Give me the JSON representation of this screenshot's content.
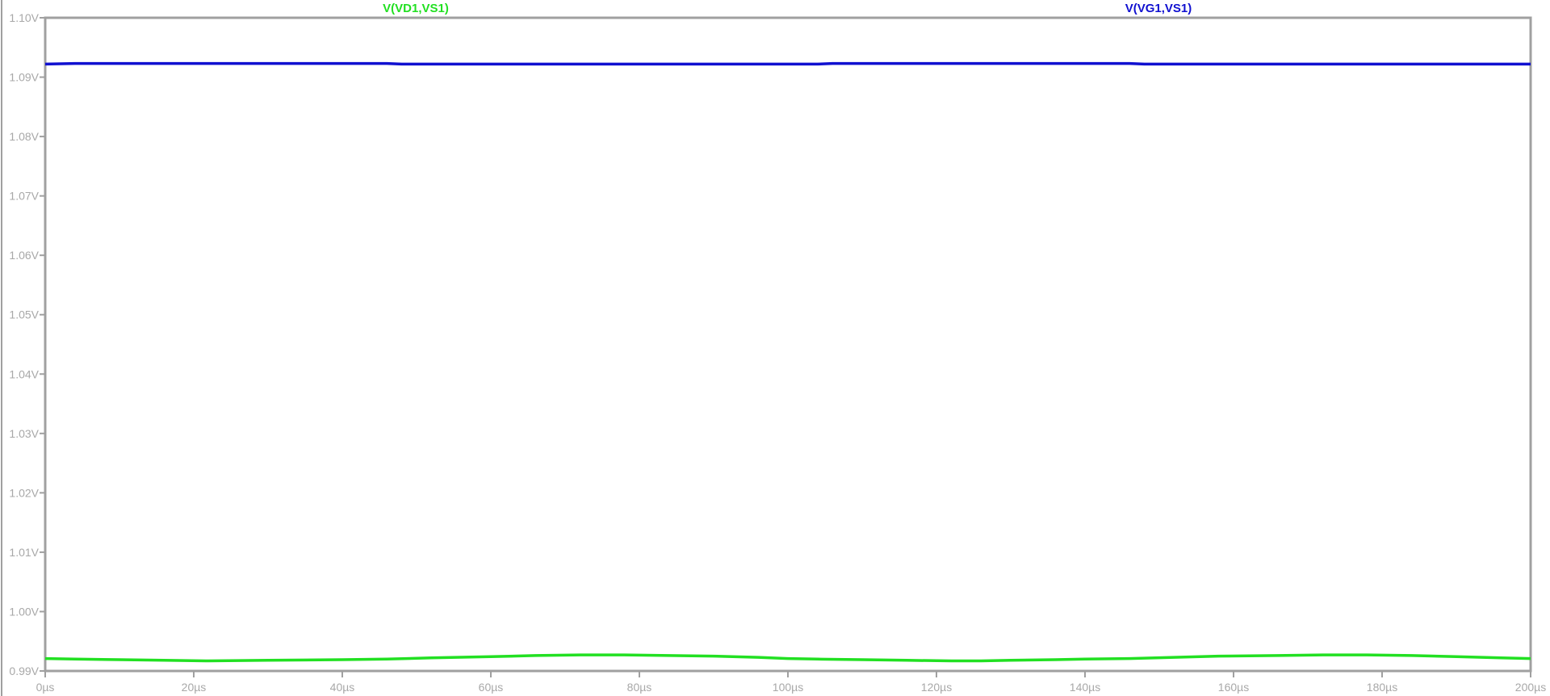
{
  "chart_data": {
    "type": "line",
    "title": "",
    "xlabel": "",
    "ylabel": "",
    "grid": false,
    "legend_placement": "top",
    "xlim": [
      0,
      200
    ],
    "ylim": [
      0.99,
      1.1
    ],
    "x_unit": "µs",
    "xticks": [
      "0µs",
      "20µs",
      "40µs",
      "60µs",
      "80µs",
      "100µs",
      "120µs",
      "140µs",
      "160µs",
      "180µs",
      "200µs"
    ],
    "yticks": [
      "0.99V",
      "1.00V",
      "1.01V",
      "1.02V",
      "1.03V",
      "1.04V",
      "1.05V",
      "1.06V",
      "1.07V",
      "1.08V",
      "1.09V",
      "1.10V"
    ],
    "series": [
      {
        "name": "V(VD1,VS1)",
        "color": "#22e022",
        "x": [
          0,
          4,
          10,
          16,
          22,
          30,
          40,
          46,
          52,
          60,
          66,
          72,
          78,
          84,
          90,
          96,
          100,
          104,
          110,
          116,
          122,
          126,
          130,
          136,
          140,
          146,
          152,
          158,
          166,
          172,
          178,
          184,
          190,
          196,
          200
        ],
        "y": [
          0.9921,
          0.992,
          0.9919,
          0.9918,
          0.9917,
          0.9918,
          0.9919,
          0.992,
          0.9922,
          0.9924,
          0.9926,
          0.9927,
          0.9927,
          0.9926,
          0.9925,
          0.9923,
          0.9921,
          0.992,
          0.9919,
          0.9918,
          0.9917,
          0.9917,
          0.9918,
          0.9919,
          0.992,
          0.9921,
          0.9923,
          0.9925,
          0.9926,
          0.9927,
          0.9927,
          0.9926,
          0.9924,
          0.9922,
          0.9921
        ]
      },
      {
        "name": "V(VG1,VS1)",
        "color": "#1010d0",
        "x": [
          0,
          4,
          46,
          48,
          104,
          106,
          146,
          148,
          200
        ],
        "y": [
          1.0922,
          1.0923,
          1.0923,
          1.0922,
          1.0922,
          1.0923,
          1.0923,
          1.0922,
          1.0922
        ]
      }
    ]
  }
}
